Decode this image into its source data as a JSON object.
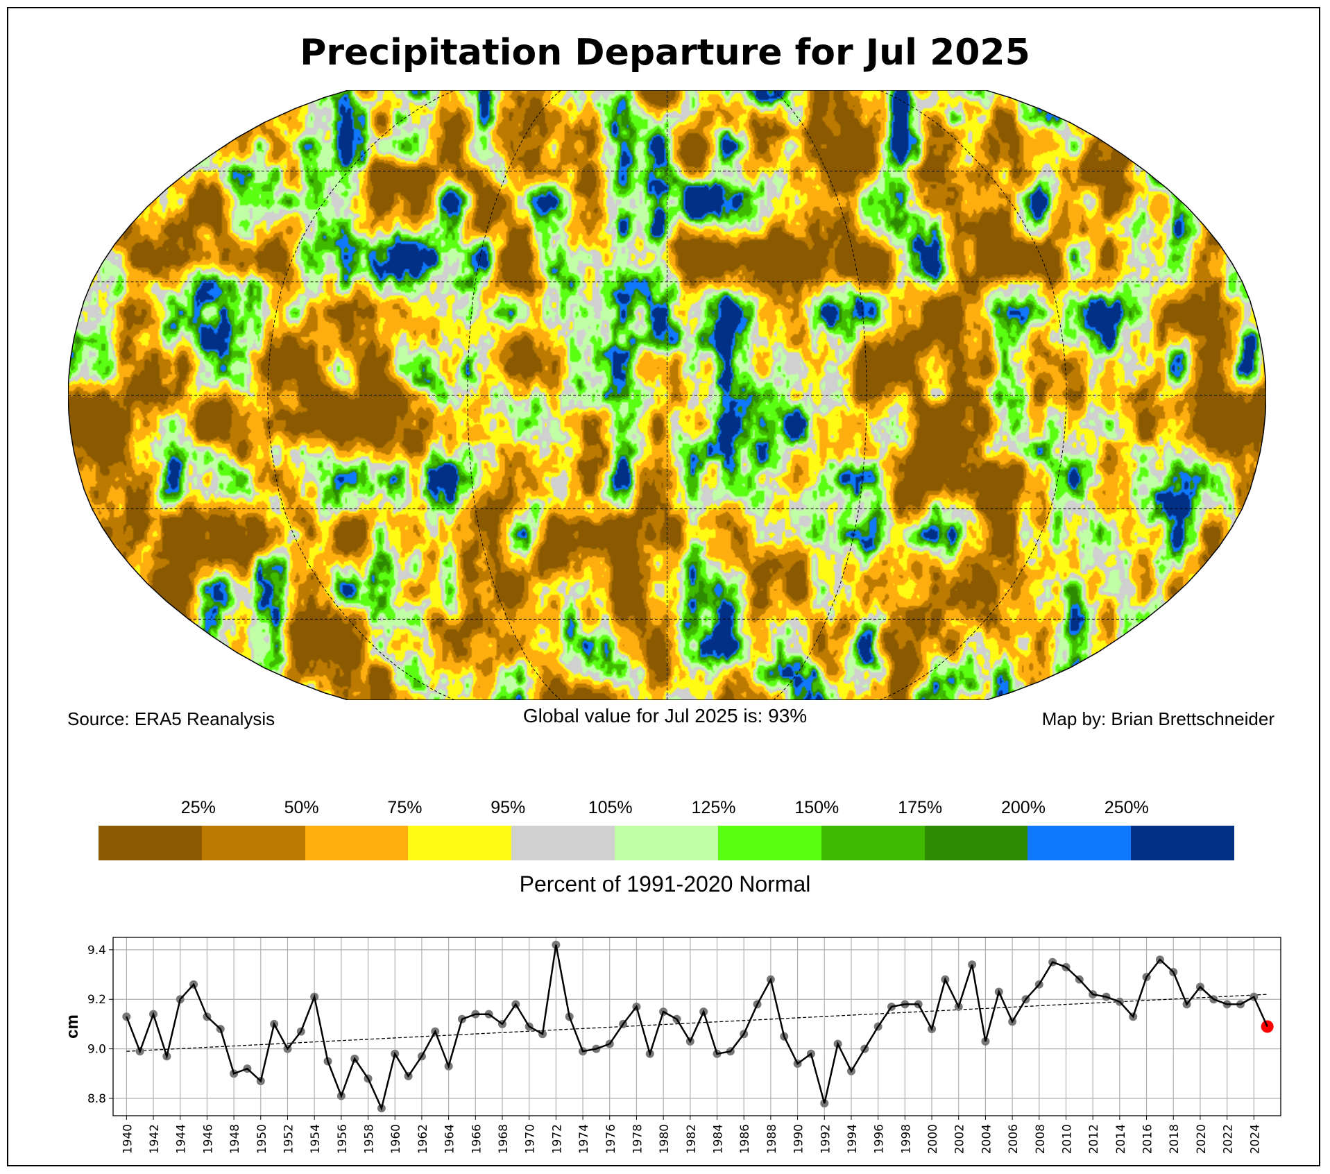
{
  "title": "Precipitation Departure for Jul 2025",
  "footer": {
    "source": "Source: ERA5 Reanalysis",
    "global_value": "Global value for Jul 2025 is: 93%",
    "credit": "Map by: Brian Brettschneider"
  },
  "colorbar": {
    "title": "Percent of 1991-2020 Normal",
    "labels": [
      "25%",
      "50%",
      "75%",
      "95%",
      "105%",
      "125%",
      "150%",
      "175%",
      "200%",
      "250%"
    ],
    "colors": [
      "#8B5A00",
      "#BC7A00",
      "#FFAE0F",
      "#FFFB12",
      "#D0D0D0",
      "#C0FFA5",
      "#5AFF12",
      "#40BA00",
      "#2E8A00",
      "#0F78FF",
      "#023087"
    ]
  },
  "map": {
    "projection": "Robinson",
    "graticule_lats": [
      -60,
      -30,
      0,
      30,
      60
    ],
    "graticule_lons": [
      -120,
      -60,
      0,
      60,
      120
    ]
  },
  "chart_data": {
    "type": "line",
    "title": "",
    "xlabel": "",
    "ylabel": "cm",
    "xlim": [
      1939,
      2026
    ],
    "ylim": [
      8.73,
      9.45
    ],
    "yticks": [
      8.8,
      9.0,
      9.2,
      9.4
    ],
    "xticks": [
      1940,
      1942,
      1944,
      1946,
      1948,
      1950,
      1952,
      1954,
      1956,
      1958,
      1960,
      1962,
      1964,
      1966,
      1968,
      1970,
      1972,
      1974,
      1976,
      1978,
      1980,
      1982,
      1984,
      1986,
      1988,
      1990,
      1992,
      1994,
      1996,
      1998,
      2000,
      2002,
      2004,
      2006,
      2008,
      2010,
      2012,
      2014,
      2016,
      2018,
      2020,
      2022,
      2024
    ],
    "grid": true,
    "x": [
      1940,
      1941,
      1942,
      1943,
      1944,
      1945,
      1946,
      1947,
      1948,
      1949,
      1950,
      1951,
      1952,
      1953,
      1954,
      1955,
      1956,
      1957,
      1958,
      1959,
      1960,
      1961,
      1962,
      1963,
      1964,
      1965,
      1966,
      1967,
      1968,
      1969,
      1970,
      1971,
      1972,
      1973,
      1974,
      1975,
      1976,
      1977,
      1978,
      1979,
      1980,
      1981,
      1982,
      1983,
      1984,
      1985,
      1986,
      1987,
      1988,
      1989,
      1990,
      1991,
      1992,
      1993,
      1994,
      1995,
      1996,
      1997,
      1998,
      1999,
      2000,
      2001,
      2002,
      2003,
      2004,
      2005,
      2006,
      2007,
      2008,
      2009,
      2010,
      2011,
      2012,
      2013,
      2014,
      2015,
      2016,
      2017,
      2018,
      2019,
      2020,
      2021,
      2022,
      2023,
      2024,
      2025
    ],
    "series": [
      {
        "values": [
          9.13,
          8.99,
          9.14,
          8.97,
          9.2,
          9.26,
          9.13,
          9.08,
          8.9,
          8.92,
          8.87,
          9.1,
          9.0,
          9.07,
          9.21,
          8.95,
          8.81,
          8.96,
          8.88,
          8.76,
          8.98,
          8.89,
          8.97,
          9.07,
          8.93,
          9.12,
          9.14,
          9.14,
          9.1,
          9.18,
          9.09,
          9.06,
          9.42,
          9.13,
          8.99,
          9.0,
          9.02,
          9.1,
          9.17,
          8.98,
          9.15,
          9.12,
          9.03,
          9.15,
          8.98,
          8.99,
          9.06,
          9.18,
          9.28,
          9.05,
          8.94,
          8.98,
          8.78,
          9.02,
          8.91,
          9.0,
          9.09,
          9.17,
          9.18,
          9.18,
          9.08,
          9.28,
          9.17,
          9.34,
          9.03,
          9.23,
          9.11,
          9.2,
          9.26,
          9.35,
          9.33,
          9.28,
          9.22,
          9.21,
          9.19,
          9.13,
          9.29,
          9.36,
          9.31,
          9.18,
          9.25,
          9.2,
          9.18,
          9.18,
          9.21,
          9.09
        ],
        "color": "#000000",
        "marker_color": "#777777",
        "highlight": {
          "x": 2025,
          "color": "#FF0000"
        }
      }
    ],
    "trend": {
      "x": [
        1940,
        2025
      ],
      "y": [
        8.99,
        9.22
      ],
      "style": "dashed"
    }
  }
}
